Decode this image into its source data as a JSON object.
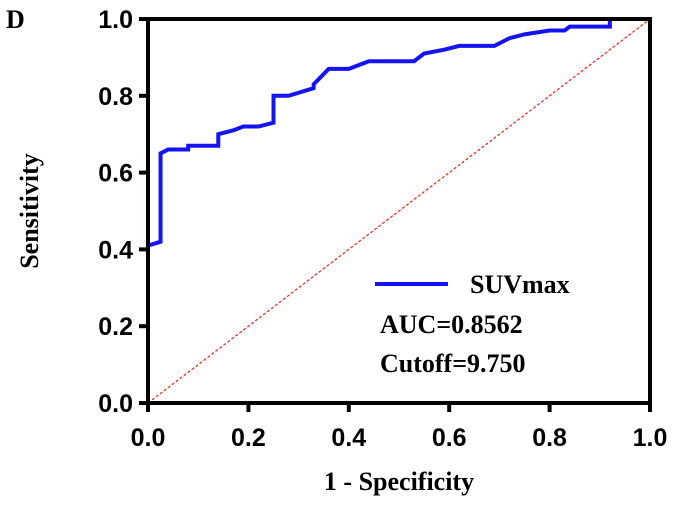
{
  "panel_label": "D",
  "chart_data": {
    "type": "line",
    "xlabel": "1 - Specificity",
    "ylabel": "Sensitivity",
    "xlim": [
      0,
      1
    ],
    "ylim": [
      0,
      1
    ],
    "x_ticks": [
      "0.0",
      "0.2",
      "0.4",
      "0.6",
      "0.8",
      "1.0"
    ],
    "y_ticks": [
      "0.0",
      "0.2",
      "0.4",
      "0.6",
      "0.8",
      "1.0"
    ],
    "grid": false,
    "legend_position": "bottom-right",
    "series": [
      {
        "name": "SUVmax",
        "color": "#1414f0",
        "x": [
          0,
          0,
          0.025,
          0.025,
          0.04,
          0.08,
          0.08,
          0.14,
          0.14,
          0.17,
          0.19,
          0.22,
          0.25,
          0.25,
          0.28,
          0.33,
          0.33,
          0.36,
          0.4,
          0.44,
          0.47,
          0.53,
          0.55,
          0.59,
          0.62,
          0.69,
          0.72,
          0.75,
          0.8,
          0.83,
          0.84,
          0.87,
          0.92,
          0.92,
          1.0
        ],
        "y": [
          0,
          0.41,
          0.42,
          0.65,
          0.66,
          0.66,
          0.67,
          0.67,
          0.7,
          0.71,
          0.72,
          0.72,
          0.73,
          0.8,
          0.8,
          0.82,
          0.83,
          0.87,
          0.87,
          0.89,
          0.89,
          0.89,
          0.91,
          0.92,
          0.93,
          0.93,
          0.95,
          0.96,
          0.97,
          0.97,
          0.98,
          0.98,
          0.98,
          1.0,
          1.0
        ]
      },
      {
        "name": "",
        "color": "#e8241c",
        "style": "dashed",
        "x": [
          0,
          1
        ],
        "y": [
          0,
          1
        ]
      }
    ],
    "annotations": [
      "AUC=0.8562",
      "Cutoff=9.750"
    ]
  }
}
